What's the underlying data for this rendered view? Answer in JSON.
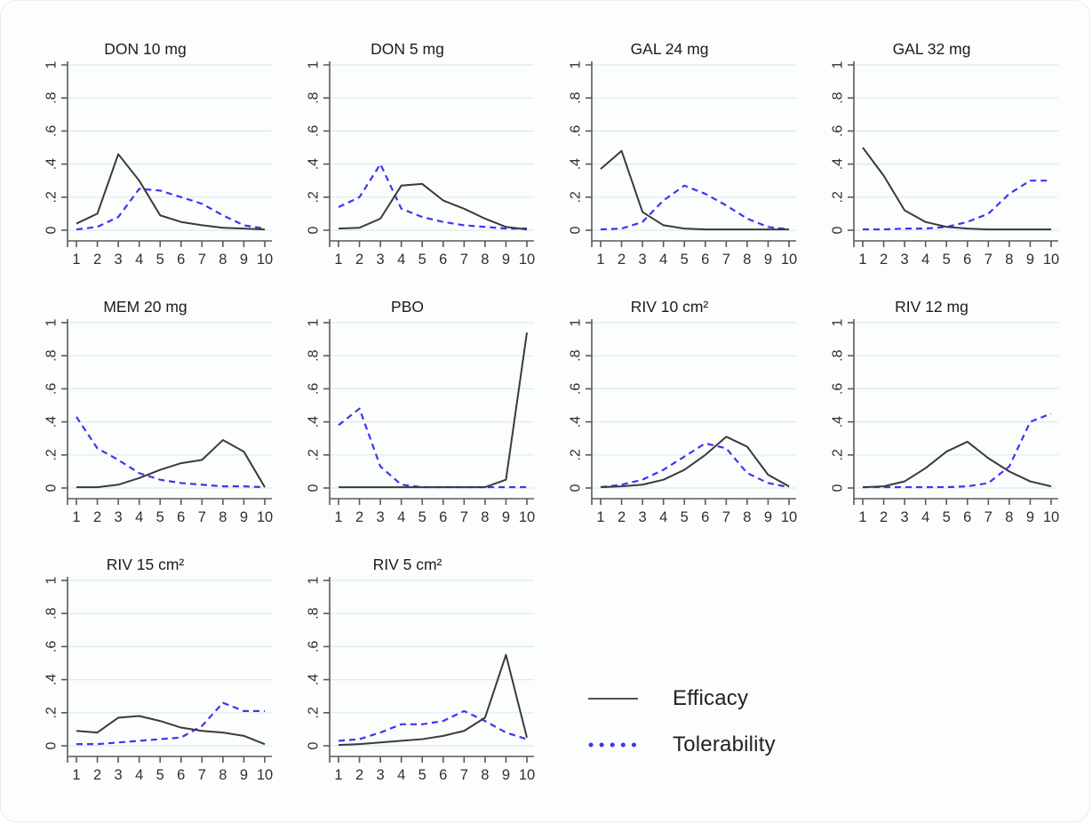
{
  "figure": {
    "background": "#fcfdfd",
    "efficacy_color": "#3a3a3a",
    "tolerability_color": "#4233f0",
    "grid_color": "#d9eced",
    "axis_color": "#5a5a5a",
    "tick_label_color": "#303030"
  },
  "legend": {
    "efficacy_label": "Efficacy",
    "tolerability_label": "Tolerability"
  },
  "chart_data": {
    "type": "line",
    "x": [
      1,
      2,
      3,
      4,
      5,
      6,
      7,
      8,
      9,
      10
    ],
    "xlabel": "",
    "ylabel": "",
    "ylim": [
      0,
      1
    ],
    "yticks": [
      0,
      0.2,
      0.4,
      0.6,
      0.8,
      1
    ],
    "ytick_labels": [
      "0",
      ".2",
      ".4",
      ".6",
      ".8",
      "1"
    ],
    "xtick_labels": [
      "1",
      "2",
      "3",
      "4",
      "5",
      "6",
      "7",
      "8",
      "9",
      "10"
    ],
    "grid": true,
    "legend_position": "bottom-right",
    "series_names": [
      "Efficacy",
      "Tolerability"
    ],
    "panels": [
      {
        "title": "DON 10 mg",
        "efficacy": [
          0.04,
          0.1,
          0.46,
          0.3,
          0.09,
          0.05,
          0.03,
          0.015,
          0.01,
          0.005
        ],
        "tolerability": [
          0.005,
          0.02,
          0.08,
          0.25,
          0.24,
          0.2,
          0.16,
          0.09,
          0.03,
          0.01
        ]
      },
      {
        "title": "DON 5 mg",
        "efficacy": [
          0.01,
          0.015,
          0.07,
          0.27,
          0.28,
          0.18,
          0.13,
          0.07,
          0.02,
          0.005
        ],
        "tolerability": [
          0.14,
          0.2,
          0.4,
          0.13,
          0.08,
          0.05,
          0.03,
          0.02,
          0.01,
          0.01
        ]
      },
      {
        "title": "GAL 24 mg",
        "efficacy": [
          0.37,
          0.48,
          0.11,
          0.03,
          0.01,
          0.005,
          0.005,
          0.005,
          0.005,
          0.005
        ],
        "tolerability": [
          0.005,
          0.01,
          0.05,
          0.18,
          0.27,
          0.22,
          0.15,
          0.07,
          0.02,
          0.005
        ]
      },
      {
        "title": "GAL 32 mg",
        "efficacy": [
          0.5,
          0.33,
          0.12,
          0.05,
          0.02,
          0.01,
          0.005,
          0.005,
          0.005,
          0.005
        ],
        "tolerability": [
          0.005,
          0.005,
          0.01,
          0.01,
          0.02,
          0.05,
          0.1,
          0.22,
          0.3,
          0.3
        ]
      },
      {
        "title": "MEM 20 mg",
        "efficacy": [
          0.005,
          0.005,
          0.02,
          0.06,
          0.11,
          0.15,
          0.17,
          0.29,
          0.22,
          0.005
        ],
        "tolerability": [
          0.43,
          0.24,
          0.17,
          0.09,
          0.05,
          0.03,
          0.02,
          0.01,
          0.01,
          0.005
        ]
      },
      {
        "title": "PBO",
        "efficacy": [
          0.005,
          0.005,
          0.005,
          0.005,
          0.005,
          0.005,
          0.005,
          0.005,
          0.05,
          0.94
        ],
        "tolerability": [
          0.38,
          0.48,
          0.13,
          0.02,
          0.005,
          0.005,
          0.005,
          0.005,
          0.005,
          0.005
        ]
      },
      {
        "title": "RIV 10 cm²",
        "efficacy": [
          0.005,
          0.01,
          0.02,
          0.05,
          0.11,
          0.2,
          0.31,
          0.25,
          0.08,
          0.01
        ],
        "tolerability": [
          0.005,
          0.02,
          0.05,
          0.11,
          0.19,
          0.27,
          0.24,
          0.09,
          0.03,
          0.005
        ]
      },
      {
        "title": "RIV 12 mg",
        "efficacy": [
          0.005,
          0.01,
          0.04,
          0.12,
          0.22,
          0.28,
          0.18,
          0.1,
          0.04,
          0.01
        ],
        "tolerability": [
          0.005,
          0.005,
          0.005,
          0.005,
          0.005,
          0.01,
          0.03,
          0.13,
          0.4,
          0.45
        ]
      },
      {
        "title": "RIV 15 cm²",
        "efficacy": [
          0.09,
          0.08,
          0.17,
          0.18,
          0.15,
          0.11,
          0.09,
          0.08,
          0.06,
          0.01
        ],
        "tolerability": [
          0.01,
          0.01,
          0.02,
          0.03,
          0.04,
          0.05,
          0.12,
          0.26,
          0.21,
          0.21
        ]
      },
      {
        "title": "RIV 5 cm²",
        "efficacy": [
          0.005,
          0.01,
          0.02,
          0.03,
          0.04,
          0.06,
          0.09,
          0.17,
          0.55,
          0.05
        ],
        "tolerability": [
          0.03,
          0.04,
          0.08,
          0.13,
          0.13,
          0.15,
          0.21,
          0.15,
          0.08,
          0.04
        ]
      }
    ]
  }
}
